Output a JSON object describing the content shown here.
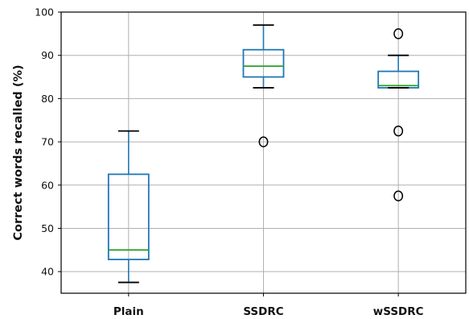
{
  "chart_data": {
    "type": "boxplot",
    "title": "",
    "xlabel": "",
    "ylabel": "Correct words recalled (%)",
    "ylim": [
      35,
      100
    ],
    "yticks": [
      40,
      50,
      60,
      70,
      80,
      90,
      100
    ],
    "grid": true,
    "categories": [
      "Plain",
      "SSDRC",
      "wSSDRC"
    ],
    "boxes": [
      {
        "name": "Plain",
        "whisker_low": 37.5,
        "q1": 42.8,
        "median": 45.0,
        "q3": 62.5,
        "whisker_high": 72.5,
        "outliers": []
      },
      {
        "name": "SSDRC",
        "whisker_low": 82.5,
        "q1": 85.0,
        "median": 87.5,
        "q3": 91.3,
        "whisker_high": 97.0,
        "outliers": [
          70.0
        ]
      },
      {
        "name": "wSSDRC",
        "whisker_low": 82.5,
        "q1": 82.5,
        "median": 83.0,
        "q3": 86.3,
        "whisker_high": 90.0,
        "outliers": [
          95.0,
          72.5,
          57.5
        ]
      }
    ],
    "colors": {
      "box": "#1f77b4",
      "median": "#2ca02c",
      "whisker": "#000000",
      "grid": "#b0b0b0",
      "axis": "#000000"
    }
  }
}
